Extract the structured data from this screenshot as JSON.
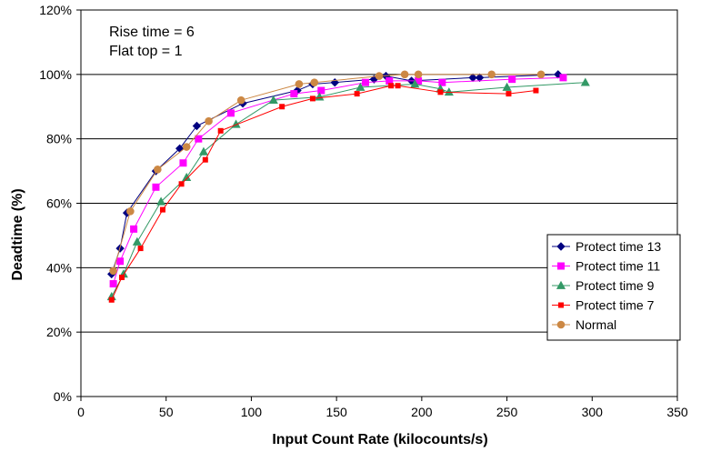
{
  "chart_data": {
    "type": "line",
    "title": "",
    "xlabel": "Input Count Rate (kilocounts/s)",
    "ylabel": "Deadtime (%)",
    "xlim": [
      0,
      350
    ],
    "ylim": [
      0,
      120
    ],
    "xticks": [
      0,
      50,
      100,
      150,
      200,
      250,
      300,
      350
    ],
    "yticks": [
      0,
      20,
      40,
      60,
      80,
      100,
      120
    ],
    "ytick_suffix": "%",
    "grid": "horizontal",
    "legend_position": "right",
    "annotations": [
      "Rise time = 6",
      "Flat top = 1"
    ],
    "series": [
      {
        "name": "Protect time 13",
        "color": "#000080",
        "marker": "diamond",
        "x": [
          18,
          23,
          27,
          44,
          58,
          68,
          95,
          127,
          136,
          149,
          172,
          179,
          194,
          230,
          234,
          280
        ],
        "y": [
          38,
          46,
          57,
          70,
          77,
          84,
          91,
          95,
          97,
          97.5,
          98.5,
          99.5,
          98,
          99,
          99,
          100
        ]
      },
      {
        "name": "Protect time 11",
        "color": "#FF00FF",
        "marker": "square",
        "x": [
          19,
          23,
          31,
          44,
          60,
          69,
          88,
          125,
          141,
          167,
          181,
          198,
          212,
          253,
          283
        ],
        "y": [
          35,
          42,
          52,
          65,
          72.5,
          80,
          88,
          94,
          95,
          97.5,
          98,
          98,
          97.5,
          98.5,
          99
        ]
      },
      {
        "name": "Protect time 9",
        "color": "#339966",
        "marker": "triangle",
        "x": [
          18,
          25,
          33,
          47,
          62,
          72,
          91,
          113,
          140,
          164,
          196,
          211,
          216,
          250,
          296
        ],
        "y": [
          31,
          38,
          48,
          60.5,
          68,
          76,
          84.5,
          92,
          93,
          96,
          97,
          95.5,
          94.5,
          96,
          97.5
        ]
      },
      {
        "name": "Protect time 7",
        "color": "#FF0000",
        "marker": "small-square",
        "x": [
          18,
          24,
          35,
          48,
          59,
          73,
          82,
          118,
          136,
          162,
          182,
          186,
          211,
          251,
          267
        ],
        "y": [
          30,
          37,
          46,
          58,
          66,
          73.5,
          82.5,
          90,
          92.5,
          94,
          96.5,
          96.5,
          94.5,
          94,
          95
        ]
      },
      {
        "name": "Normal",
        "color": "#CC8844",
        "marker": "circle",
        "x": [
          19,
          29,
          45,
          62,
          75,
          94,
          128,
          137,
          175,
          190,
          198,
          241,
          270
        ],
        "y": [
          39,
          57.5,
          70.5,
          77.5,
          85.5,
          92,
          97,
          97.5,
          99.5,
          100,
          100,
          100,
          100
        ]
      }
    ]
  }
}
